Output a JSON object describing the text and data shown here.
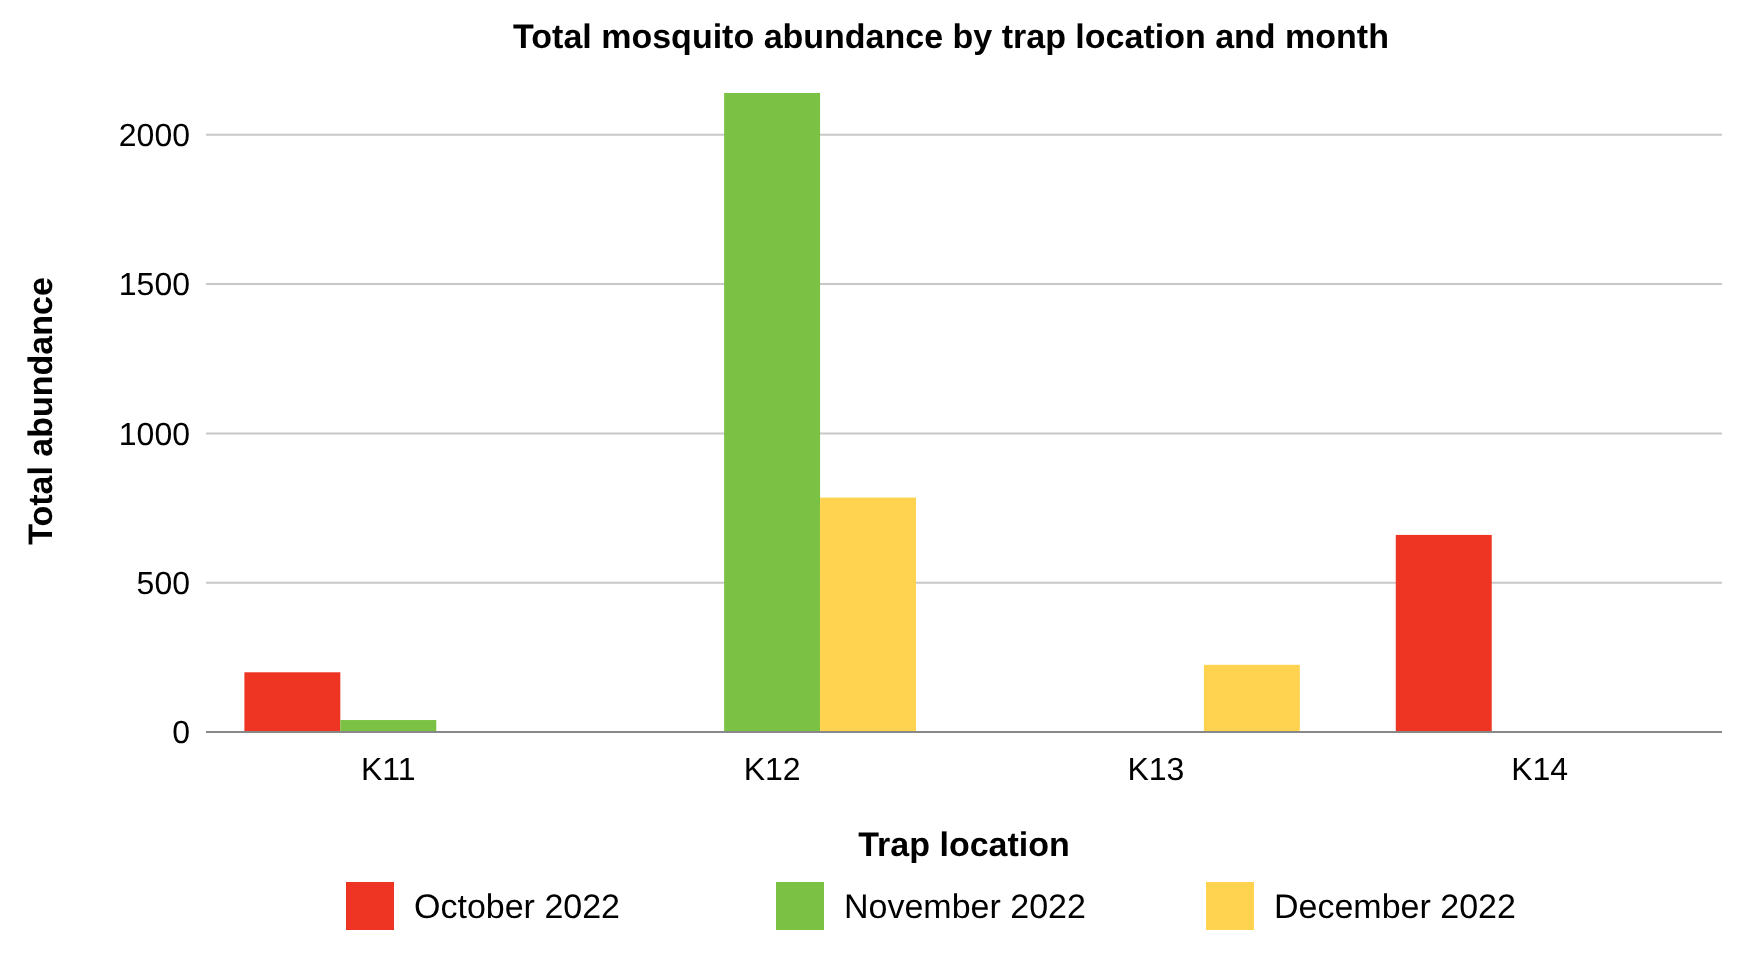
{
  "chart_data": {
    "type": "bar",
    "title": "Total mosquito abundance by trap location and month",
    "xlabel": "Trap location",
    "ylabel": "Total abundance",
    "categories": [
      "K11",
      "K12",
      "K13",
      "K14"
    ],
    "series": [
      {
        "name": "October 2022",
        "color": "#ee3524",
        "values": [
          200,
          0,
          0,
          660
        ]
      },
      {
        "name": "November 2022",
        "color": "#7bc144",
        "values": [
          40,
          2140,
          0,
          0
        ]
      },
      {
        "name": "December 2022",
        "color": "#ffd24f",
        "values": [
          0,
          785,
          225,
          0
        ]
      }
    ],
    "ylim": [
      0,
      2150
    ],
    "yticks": [
      0,
      500,
      1000,
      1500,
      2000
    ],
    "grid": "y",
    "legend": "bottom"
  }
}
